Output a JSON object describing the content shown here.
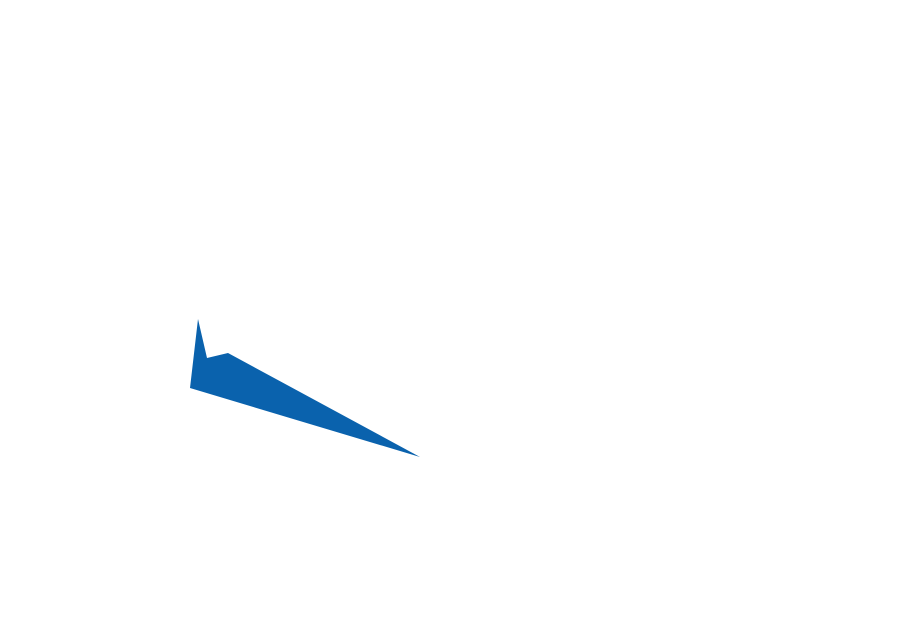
{
  "shape": {
    "fill": "#0a62ad"
  }
}
